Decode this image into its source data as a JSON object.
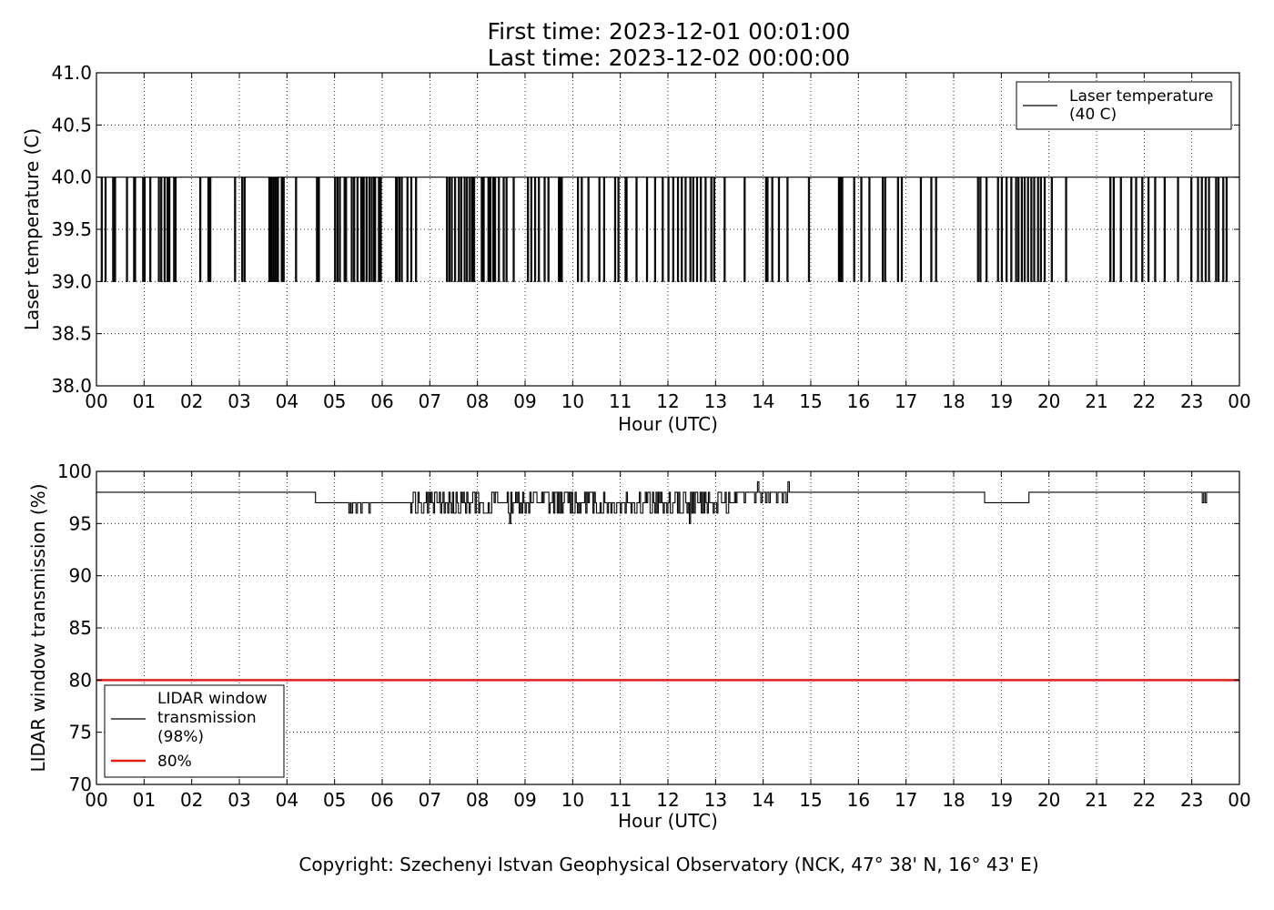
{
  "header": {
    "first_time": "First time: 2023-12-01 00:01:00",
    "last_time": "Last time: 2023-12-02 00:00:00"
  },
  "copyright": "Copyright: Szechenyi Istvan Geophysical Observatory (NCK, 47° 38' N, 16° 43' E)",
  "colors": {
    "series": "#000000",
    "threshold": "#e0201b"
  },
  "chart_data": [
    {
      "type": "line",
      "xlabel": "Hour (UTC)",
      "ylabel": "Laser temperature (C)",
      "xlim": [
        0,
        24
      ],
      "ylim": [
        38.0,
        41.0
      ],
      "x_ticks": [
        0,
        1,
        2,
        3,
        4,
        5,
        6,
        7,
        8,
        9,
        10,
        11,
        12,
        13,
        14,
        15,
        16,
        17,
        18,
        19,
        20,
        21,
        22,
        23,
        24
      ],
      "x_tick_labels": [
        "00",
        "01",
        "02",
        "03",
        "04",
        "05",
        "06",
        "07",
        "08",
        "09",
        "10",
        "11",
        "12",
        "13",
        "14",
        "15",
        "16",
        "17",
        "18",
        "19",
        "20",
        "21",
        "22",
        "23",
        "00"
      ],
      "y_ticks": [
        38.0,
        38.5,
        39.0,
        39.5,
        40.0,
        40.5,
        41.0
      ],
      "y_tick_labels": [
        "38.0",
        "38.5",
        "39.0",
        "39.5",
        "40.0",
        "40.5",
        "41.0"
      ],
      "grid": true,
      "legend_position": "top-right",
      "series": [
        {
          "name": "Laser temperature\n(40 C)",
          "legend_lines": [
            "Laser temperature",
            "(40 C)"
          ],
          "baseline": 40.0,
          "dip_value": 39.0,
          "dips_hours": [
            0.1,
            0.18,
            0.34,
            0.38,
            0.63,
            0.78,
            0.8,
            0.97,
            1.0,
            1.12,
            1.3,
            1.35,
            1.42,
            1.48,
            1.52,
            1.62,
            1.65,
            2.17,
            2.34,
            2.38,
            2.9,
            3.05,
            3.1,
            3.62,
            3.64,
            3.68,
            3.72,
            3.76,
            3.8,
            3.88,
            3.92,
            4.18,
            4.62,
            4.66,
            5.0,
            5.05,
            5.1,
            5.2,
            5.23,
            5.35,
            5.4,
            5.47,
            5.55,
            5.58,
            5.6,
            5.66,
            5.72,
            5.77,
            5.82,
            5.84,
            5.92,
            5.96,
            6.28,
            6.3,
            6.35,
            6.4,
            6.52,
            6.6,
            6.7,
            7.35,
            7.4,
            7.45,
            7.52,
            7.6,
            7.65,
            7.72,
            7.77,
            7.83,
            7.88,
            7.92,
            8.08,
            8.12,
            8.22,
            8.26,
            8.32,
            8.36,
            8.44,
            8.54,
            8.6,
            8.75,
            9.05,
            9.12,
            9.2,
            9.28,
            9.4,
            9.48,
            9.7,
            9.72,
            9.76,
            10.1,
            10.18,
            10.32,
            10.55,
            10.65,
            10.88,
            10.95,
            11.1,
            11.12,
            11.33,
            11.55,
            11.55,
            11.72,
            11.88,
            12.0,
            12.1,
            12.2,
            12.28,
            12.36,
            12.46,
            12.52,
            12.6,
            12.68,
            12.78,
            12.9,
            12.96,
            13.18,
            13.6,
            14.05,
            14.08,
            14.18,
            14.32,
            14.5,
            14.95,
            15.58,
            15.6,
            15.62,
            15.65,
            15.9,
            16.05,
            16.22,
            16.5,
            16.55,
            16.82,
            16.9,
            17.3,
            17.52,
            17.62,
            18.5,
            18.55,
            18.68,
            18.92,
            19.0,
            19.1,
            19.2,
            19.3,
            19.35,
            19.42,
            19.48,
            19.55,
            19.62,
            19.68,
            19.76,
            19.82,
            19.9,
            20.05,
            20.35,
            21.28,
            21.35,
            21.5,
            21.72,
            21.82,
            21.95,
            22.08,
            22.22,
            22.42,
            22.7,
            22.98,
            23.12,
            23.2,
            23.28,
            23.35,
            23.5,
            23.55,
            23.65,
            23.72
          ]
        }
      ]
    },
    {
      "type": "line",
      "xlabel": "Hour (UTC)",
      "ylabel": "LIDAR window transmission (%)",
      "xlim": [
        0,
        24
      ],
      "ylim": [
        70,
        100
      ],
      "x_ticks": [
        0,
        1,
        2,
        3,
        4,
        5,
        6,
        7,
        8,
        9,
        10,
        11,
        12,
        13,
        14,
        15,
        16,
        17,
        18,
        19,
        20,
        21,
        22,
        23,
        24
      ],
      "x_tick_labels": [
        "00",
        "01",
        "02",
        "03",
        "04",
        "05",
        "06",
        "07",
        "08",
        "09",
        "10",
        "11",
        "12",
        "13",
        "14",
        "15",
        "16",
        "17",
        "18",
        "19",
        "20",
        "21",
        "22",
        "23",
        "00"
      ],
      "y_ticks": [
        70,
        75,
        80,
        85,
        90,
        95,
        100
      ],
      "y_tick_labels": [
        "70",
        "75",
        "80",
        "85",
        "90",
        "95",
        "100"
      ],
      "grid": true,
      "legend_position": "bottom-left",
      "series": [
        {
          "name": "LIDAR window\ntransmission\n(98%)",
          "legend_lines": [
            "LIDAR window",
            "transmission",
            "(98%)"
          ],
          "segments": [
            {
              "x0": 0.0,
              "x1": 4.6,
              "value": 98
            },
            {
              "x0": 4.6,
              "x1": 6.6,
              "value": 97,
              "dips_value": 96,
              "dips_hours": [
                5.3,
                5.35,
                5.45,
                5.55,
                5.72
              ]
            },
            {
              "x0": 6.6,
              "x1": 13.45,
              "value": 97,
              "noisy": true,
              "range": [
                95,
                98
              ],
              "event_hours": [
                8.68,
                12.45
              ]
            },
            {
              "x0": 13.45,
              "x1": 14.55,
              "value": 98,
              "dips_value": 97,
              "dips_hours": [
                13.6,
                13.82,
                13.95,
                14.05,
                14.12,
                14.28,
                14.4,
                14.48
              ],
              "spike_value": 99,
              "spike_hours": [
                13.88,
                14.52
              ]
            },
            {
              "x0": 14.55,
              "x1": 18.65,
              "value": 98
            },
            {
              "x0": 18.65,
              "x1": 18.8,
              "value": 97
            },
            {
              "x0": 18.8,
              "x1": 19.58,
              "value": 97
            },
            {
              "x0": 19.58,
              "x1": 24.0,
              "value": 98,
              "dips_value": 97,
              "dips_hours": [
                23.22,
                23.28
              ]
            }
          ]
        },
        {
          "name": "80%",
          "legend_lines": [
            "80%"
          ],
          "constant": 80
        }
      ]
    }
  ]
}
